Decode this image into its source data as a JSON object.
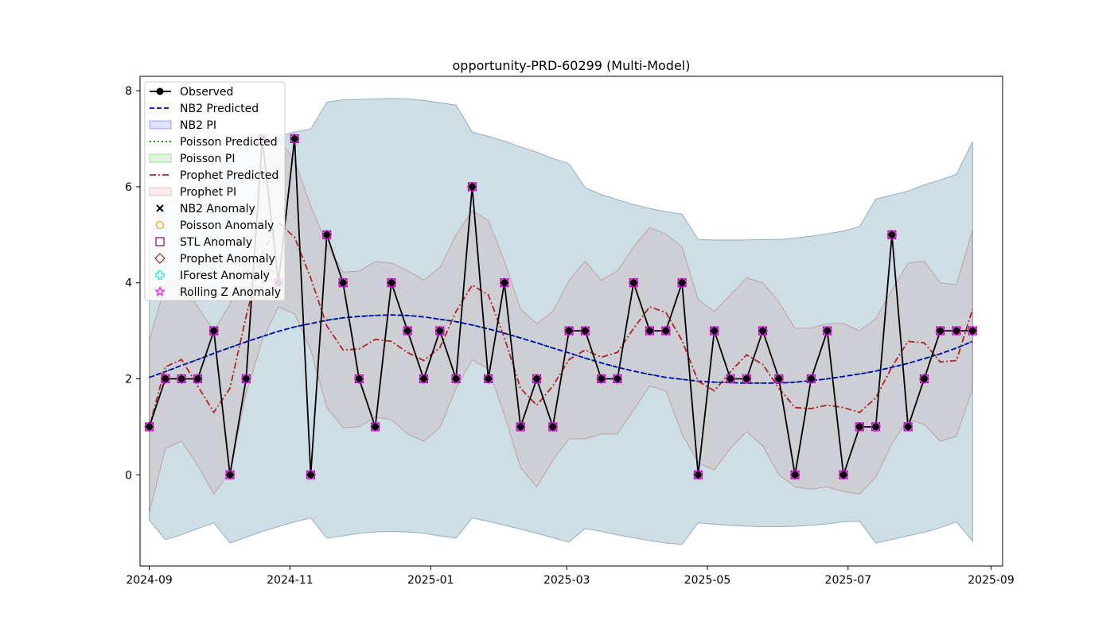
{
  "chart_data": {
    "type": "line",
    "title": "opportunity-PRD-60299 (Multi-Model)",
    "xlabel": "",
    "ylabel": "",
    "x_ticks": [
      "2024-09",
      "2024-11",
      "2025-01",
      "2025-03",
      "2025-05",
      "2025-07",
      "2025-09"
    ],
    "y_ticks": [
      0,
      2,
      4,
      6,
      8
    ],
    "xlim": [
      "2024-08-28",
      "2025-09-06"
    ],
    "ylim": [
      -1.9,
      8.3
    ],
    "grid": false,
    "legend_position": "upper-left",
    "dates": [
      "2024-09-01",
      "2024-09-08",
      "2024-09-15",
      "2024-09-22",
      "2024-09-29",
      "2024-10-06",
      "2024-10-13",
      "2024-10-20",
      "2024-10-27",
      "2024-11-03",
      "2024-11-10",
      "2024-11-17",
      "2024-11-24",
      "2024-12-01",
      "2024-12-08",
      "2024-12-15",
      "2024-12-22",
      "2024-12-29",
      "2025-01-05",
      "2025-01-12",
      "2025-01-19",
      "2025-01-26",
      "2025-02-02",
      "2025-02-09",
      "2025-02-16",
      "2025-02-23",
      "2025-03-02",
      "2025-03-09",
      "2025-03-16",
      "2025-03-23",
      "2025-03-30",
      "2025-04-06",
      "2025-04-13",
      "2025-04-20",
      "2025-04-27",
      "2025-05-04",
      "2025-05-11",
      "2025-05-18",
      "2025-05-25",
      "2025-06-01",
      "2025-06-08",
      "2025-06-15",
      "2025-06-22",
      "2025-06-29",
      "2025-07-06",
      "2025-07-13",
      "2025-07-20",
      "2025-07-27",
      "2025-08-03",
      "2025-08-10",
      "2025-08-17",
      "2025-08-24"
    ],
    "series": [
      {
        "name": "Observed",
        "color": "#000000",
        "values": [
          1,
          2,
          2,
          2,
          3,
          0,
          2,
          7,
          4,
          7,
          0,
          5,
          4,
          2,
          1,
          4,
          3,
          2,
          3,
          2,
          6,
          2,
          4,
          1,
          2,
          1,
          3,
          3,
          2,
          2,
          4,
          3,
          3,
          4,
          0,
          3,
          2,
          2,
          3,
          2,
          0,
          2,
          3,
          0,
          1,
          1,
          5,
          1,
          2,
          3,
          3,
          3
        ]
      },
      {
        "name": "NB2 Predicted",
        "color": "#0000cc",
        "values": [
          2.03,
          2.15,
          2.28,
          2.4,
          2.53,
          2.65,
          2.77,
          2.88,
          2.99,
          3.08,
          3.15,
          3.22,
          3.27,
          3.3,
          3.32,
          3.33,
          3.32,
          3.29,
          3.24,
          3.19,
          3.12,
          3.04,
          2.95,
          2.85,
          2.75,
          2.64,
          2.54,
          2.43,
          2.33,
          2.24,
          2.16,
          2.09,
          2.03,
          1.99,
          1.95,
          1.93,
          1.92,
          1.91,
          1.91,
          1.91,
          1.93,
          1.96,
          2,
          2.05,
          2.1,
          2.16,
          2.24,
          2.32,
          2.42,
          2.52,
          2.64,
          2.78
        ]
      },
      {
        "name": "Poisson Predicted",
        "color": "#007700",
        "values": [
          2.03,
          2.15,
          2.28,
          2.4,
          2.53,
          2.65,
          2.77,
          2.88,
          2.99,
          3.08,
          3.15,
          3.22,
          3.27,
          3.3,
          3.32,
          3.33,
          3.32,
          3.29,
          3.24,
          3.19,
          3.12,
          3.04,
          2.95,
          2.85,
          2.75,
          2.64,
          2.54,
          2.43,
          2.33,
          2.24,
          2.16,
          2.09,
          2.03,
          1.99,
          1.95,
          1.93,
          1.92,
          1.91,
          1.91,
          1.91,
          1.93,
          1.96,
          2,
          2.05,
          2.1,
          2.16,
          2.24,
          2.32,
          2.42,
          2.52,
          2.64,
          2.78
        ]
      },
      {
        "name": "Prophet Predicted",
        "color": "#b22222",
        "values": [
          1,
          2.25,
          2.4,
          1.85,
          1.3,
          1.8,
          3.3,
          4.6,
          5.25,
          4.95,
          4.1,
          3.1,
          2.6,
          2.62,
          2.82,
          2.78,
          2.55,
          2.38,
          2.65,
          3.4,
          3.95,
          3.75,
          2.85,
          1.8,
          1.45,
          1.85,
          2.4,
          2.6,
          2.45,
          2.55,
          3.05,
          3.5,
          3.38,
          2.8,
          1.95,
          1.75,
          2.15,
          2.5,
          2.3,
          1.8,
          1.4,
          1.38,
          1.45,
          1.4,
          1.3,
          1.6,
          2.25,
          2.78,
          2.75,
          2.35,
          2.38,
          3.45
        ]
      }
    ],
    "bands": [
      {
        "name": "NB2 PI",
        "color": "#0000ff",
        "lower": [
          -0.95,
          -1.35,
          -1.25,
          -1.12,
          -1,
          -1.42,
          -1.3,
          -1.18,
          -1.08,
          -0.98,
          -0.9,
          -1.32,
          -1.27,
          -1.22,
          -1.19,
          -1.18,
          -1.19,
          -1.22,
          -1.27,
          -1.32,
          -0.9,
          -0.97,
          -1.05,
          -1.13,
          -1.22,
          -1.31,
          -1.4,
          -1.12,
          -1.18,
          -1.25,
          -1.31,
          -1.37,
          -1.42,
          -1.45,
          -1,
          -1.03,
          -1.05,
          -1.07,
          -1.08,
          -1.08,
          -1.07,
          -1.05,
          -1.02,
          -0.98,
          -0.97,
          -1.42,
          -1.35,
          -1.27,
          -1.2,
          -1.1,
          -0.98,
          -1.38
        ]
      },
      {
        "name": "Poisson PI",
        "color": "#00aa00",
        "lower": [
          -0.95,
          -1.35,
          -1.25,
          -1.12,
          -1,
          -1.42,
          -1.3,
          -1.18,
          -1.08,
          -0.98,
          -0.9,
          -1.32,
          -1.27,
          -1.22,
          -1.19,
          -1.18,
          -1.19,
          -1.22,
          -1.27,
          -1.32,
          -0.9,
          -0.97,
          -1.05,
          -1.13,
          -1.22,
          -1.31,
          -1.4,
          -1.12,
          -1.18,
          -1.25,
          -1.31,
          -1.37,
          -1.42,
          -1.45,
          -1,
          -1.03,
          -1.05,
          -1.07,
          -1.08,
          -1.08,
          -1.07,
          -1.05,
          -1.02,
          -0.98,
          -0.97,
          -1.42,
          -1.35,
          -1.27,
          -1.2,
          -1.1,
          -0.98,
          -1.38
        ]
      },
      {
        "name": "Prophet PI",
        "color": "#cc6666",
        "lower": [
          -0.8,
          0.55,
          0.7,
          0.2,
          -0.4,
          0.05,
          1.7,
          2.8,
          3.5,
          3.35,
          2.6,
          1.4,
          0.98,
          1,
          1.2,
          1.15,
          0.85,
          0.7,
          0.98,
          1.8,
          2.4,
          2.2,
          1.25,
          0.15,
          -0.25,
          0.3,
          0.75,
          0.75,
          0.85,
          0.85,
          1.35,
          1.85,
          1.75,
          0.85,
          0.25,
          0.1,
          0.55,
          0.9,
          0.6,
          0,
          -0.25,
          -0.3,
          -0.25,
          -0.35,
          -0.4,
          -0.05,
          0.65,
          1.15,
          1.05,
          0.7,
          0.8,
          1.8
        ]
      }
    ],
    "anomaly_markers": [
      {
        "name": "NB2 Anomaly",
        "symbol": "x",
        "color": "#000000"
      },
      {
        "name": "Poisson Anomaly",
        "symbol": "circle",
        "color": "#ffa500"
      },
      {
        "name": "STL Anomaly",
        "symbol": "square",
        "color": "#800080"
      },
      {
        "name": "Prophet Anomaly",
        "symbol": "diamond",
        "color": "#8b2a2a"
      },
      {
        "name": "IForest Anomaly",
        "symbol": "plus",
        "color": "#00e5ee"
      },
      {
        "name": "Rolling Z Anomaly",
        "symbol": "star",
        "color": "#ff00ff"
      }
    ]
  }
}
